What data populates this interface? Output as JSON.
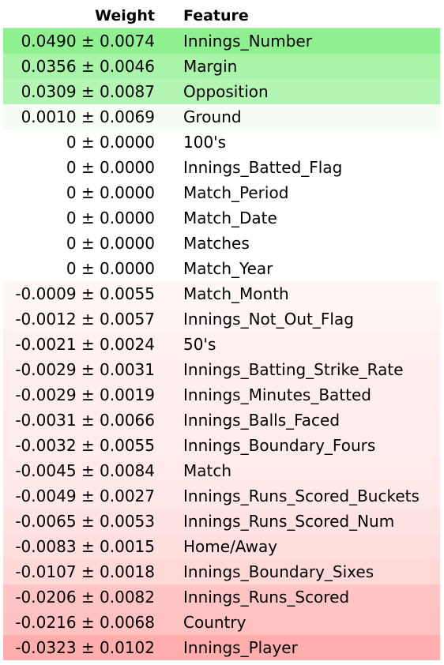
{
  "header": {
    "weight_label": "Weight",
    "feature_label": "Feature"
  },
  "rows": [
    {
      "weight": "0.0490 ± 0.0074",
      "feature": "Innings_Number",
      "color": "#8ef08e"
    },
    {
      "weight": "0.0356 ± 0.0046",
      "feature": "Margin",
      "color": "#a8f4a8"
    },
    {
      "weight": "0.0309 ± 0.0087",
      "feature": "Opposition",
      "color": "#b3f6b3"
    },
    {
      "weight": "0.0010 ± 0.0069",
      "feature": "Ground",
      "color": "#f5fdf5"
    },
    {
      "weight": "0 ± 0.0000",
      "feature": "100's",
      "color": "#ffffff"
    },
    {
      "weight": "0 ± 0.0000",
      "feature": "Innings_Batted_Flag",
      "color": "#ffffff"
    },
    {
      "weight": "0 ± 0.0000",
      "feature": "Match_Period",
      "color": "#ffffff"
    },
    {
      "weight": "0 ± 0.0000",
      "feature": "Match_Date",
      "color": "#ffffff"
    },
    {
      "weight": "0 ± 0.0000",
      "feature": "Matches",
      "color": "#ffffff"
    },
    {
      "weight": "0 ± 0.0000",
      "feature": "Match_Year",
      "color": "#ffffff"
    },
    {
      "weight": "-0.0009 ± 0.0055",
      "feature": "Match_Month",
      "color": "#fff6f6"
    },
    {
      "weight": "-0.0012 ± 0.0057",
      "feature": "Innings_Not_Out_Flag",
      "color": "#fff5f5"
    },
    {
      "weight": "-0.0021 ± 0.0024",
      "feature": "50's",
      "color": "#fff1f1"
    },
    {
      "weight": "-0.0029 ± 0.0031",
      "feature": "Innings_Batting_Strike_Rate",
      "color": "#ffeeee"
    },
    {
      "weight": "-0.0029 ± 0.0019",
      "feature": "Innings_Minutes_Batted",
      "color": "#ffeeee"
    },
    {
      "weight": "-0.0031 ± 0.0066",
      "feature": "Innings_Balls_Faced",
      "color": "#ffeded"
    },
    {
      "weight": "-0.0032 ± 0.0055",
      "feature": "Innings_Boundary_Fours",
      "color": "#ffeded"
    },
    {
      "weight": "-0.0045 ± 0.0084",
      "feature": "Match",
      "color": "#ffe9e9"
    },
    {
      "weight": "-0.0049 ± 0.0027",
      "feature": "Innings_Runs_Scored_Buckets",
      "color": "#ffe8e8"
    },
    {
      "weight": "-0.0065 ± 0.0053",
      "feature": "Innings_Runs_Scored_Num",
      "color": "#ffe3e3"
    },
    {
      "weight": "-0.0083 ± 0.0015",
      "feature": "Home/Away",
      "color": "#ffdede"
    },
    {
      "weight": "-0.0107 ± 0.0018",
      "feature": "Innings_Boundary_Sixes",
      "color": "#ffd8d8"
    },
    {
      "weight": "-0.0206 ± 0.0082",
      "feature": "Innings_Runs_Scored",
      "color": "#ffc4c4"
    },
    {
      "weight": "-0.0216 ± 0.0068",
      "feature": "Country",
      "color": "#ffc2c2"
    },
    {
      "weight": "-0.0323 ± 0.0102",
      "feature": "Innings_Player",
      "color": "#ffadad"
    }
  ]
}
